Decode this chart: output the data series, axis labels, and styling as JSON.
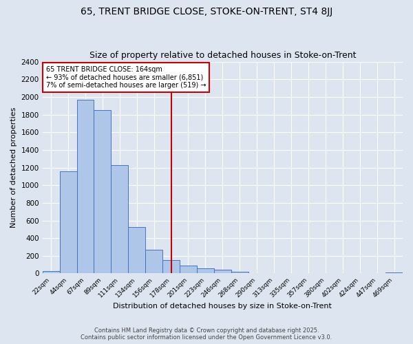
{
  "title1": "65, TRENT BRIDGE CLOSE, STOKE-ON-TRENT, ST4 8JJ",
  "title2": "Size of property relative to detached houses in Stoke-on-Trent",
  "xlabel": "Distribution of detached houses by size in Stoke-on-Trent",
  "ylabel": "Number of detached properties",
  "footer1": "Contains HM Land Registry data © Crown copyright and database right 2025.",
  "footer2": "Contains public sector information licensed under the Open Government Licence v3.0.",
  "categories": [
    "22sqm",
    "44sqm",
    "67sqm",
    "89sqm",
    "111sqm",
    "134sqm",
    "156sqm",
    "178sqm",
    "201sqm",
    "223sqm",
    "246sqm",
    "268sqm",
    "290sqm",
    "313sqm",
    "335sqm",
    "357sqm",
    "380sqm",
    "402sqm",
    "424sqm",
    "447sqm",
    "469sqm"
  ],
  "values": [
    30,
    1160,
    1970,
    1850,
    1230,
    525,
    270,
    155,
    90,
    55,
    45,
    20,
    5,
    5,
    2,
    2,
    2,
    2,
    2,
    2,
    15
  ],
  "bar_color": "#aec6e8",
  "bar_edge_color": "#4472c4",
  "vline_x": 7.0,
  "vline_color": "#cc0000",
  "annotation_title": "65 TRENT BRIDGE CLOSE: 164sqm",
  "annotation_line1": "← 93% of detached houses are smaller (6,851)",
  "annotation_line2": "7% of semi-detached houses are larger (519) →",
  "annotation_box_color": "#ffffff",
  "annotation_box_edge": "#cc0000",
  "ylim": [
    0,
    2400
  ],
  "yticks": [
    0,
    200,
    400,
    600,
    800,
    1000,
    1200,
    1400,
    1600,
    1800,
    2000,
    2200,
    2400
  ],
  "bg_color": "#dde6f0",
  "grid_color": "#ffffff",
  "title1_fontsize": 10,
  "title2_fontsize": 9
}
